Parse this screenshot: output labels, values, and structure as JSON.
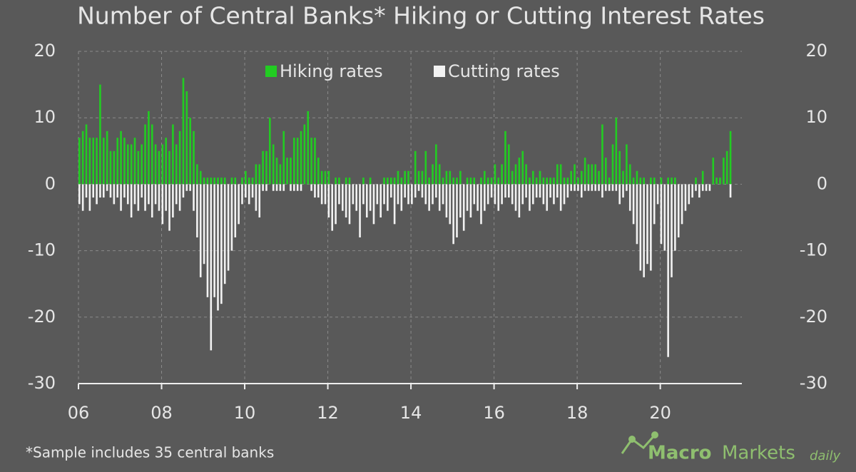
{
  "chart_data": {
    "type": "bar",
    "title": "Number of Central Banks* Hiking or Cutting Interest Rates",
    "footnote": "*Sample includes 35 central banks",
    "brand": [
      "Macro",
      "Markets",
      "daily"
    ],
    "categories": [
      "06",
      null,
      null,
      null,
      null,
      null,
      null,
      null,
      null,
      null,
      null,
      null,
      null,
      null,
      null,
      null,
      null,
      null,
      null,
      null,
      null,
      null,
      null,
      null,
      "08",
      null,
      null,
      null,
      null,
      null,
      null,
      null,
      null,
      null,
      null,
      null,
      null,
      null,
      null,
      null,
      null,
      null,
      null,
      null,
      null,
      null,
      null,
      null,
      "10",
      null,
      null,
      null,
      null,
      null,
      null,
      null,
      null,
      null,
      null,
      null,
      null,
      null,
      null,
      null,
      null,
      null,
      null,
      null,
      null,
      null,
      null,
      null,
      "12",
      null,
      null,
      null,
      null,
      null,
      null,
      null,
      null,
      null,
      null,
      null,
      null,
      null,
      null,
      null,
      null,
      null,
      null,
      null,
      null,
      null,
      null,
      null,
      "14",
      null,
      null,
      null,
      null,
      null,
      null,
      null,
      null,
      null,
      null,
      null,
      null,
      null,
      null,
      null,
      null,
      null,
      null,
      null,
      null,
      null,
      null,
      null,
      "16",
      null,
      null,
      null,
      null,
      null,
      null,
      null,
      null,
      null,
      null,
      null,
      null,
      null,
      null,
      null,
      null,
      null,
      null,
      null,
      null,
      null,
      null,
      null,
      "18",
      null,
      null,
      null,
      null,
      null,
      null,
      null,
      null,
      null,
      null,
      null,
      null,
      null,
      null,
      null,
      null,
      null,
      null,
      null,
      null,
      null,
      null,
      null,
      "20",
      null,
      null,
      null,
      null,
      null,
      null,
      null,
      null,
      null,
      null,
      null,
      null,
      null,
      null,
      null,
      null,
      null,
      null,
      null,
      null
    ],
    "series": [
      {
        "name": "Hiking rates",
        "color": "#22cc22",
        "values": [
          7,
          8,
          9,
          7,
          7,
          7,
          15,
          7,
          8,
          5,
          5,
          7,
          8,
          7,
          6,
          6,
          7,
          5,
          6,
          9,
          11,
          9,
          6,
          5,
          6,
          7,
          5,
          9,
          6,
          8,
          16,
          14,
          10,
          8,
          3,
          2,
          1,
          1,
          1,
          1,
          1,
          1,
          1,
          0,
          1,
          1,
          0,
          1,
          2,
          1,
          1,
          3,
          3,
          5,
          5,
          10,
          6,
          4,
          3,
          8,
          4,
          4,
          7,
          7,
          8,
          9,
          11,
          7,
          7,
          4,
          2,
          2,
          2,
          0,
          1,
          1,
          0,
          1,
          1,
          0,
          0,
          0,
          1,
          0,
          1,
          0,
          0,
          0,
          1,
          1,
          1,
          1,
          2,
          1,
          2,
          2,
          0,
          5,
          2,
          2,
          5,
          1,
          3,
          6,
          3,
          1,
          2,
          2,
          1,
          1,
          2,
          0,
          1,
          1,
          1,
          0,
          1,
          2,
          1,
          1,
          3,
          1,
          3,
          8,
          6,
          2,
          3,
          4,
          5,
          3,
          1,
          2,
          1,
          2,
          1,
          1,
          1,
          1,
          3,
          3,
          1,
          1,
          2,
          3,
          1,
          2,
          4,
          3,
          3,
          3,
          2,
          9,
          4,
          1,
          6,
          10,
          5,
          2,
          6,
          3,
          1,
          2,
          1,
          1,
          0,
          1,
          1,
          0,
          1,
          0,
          1,
          1,
          1,
          0,
          0,
          0,
          0,
          0,
          1,
          0,
          2,
          0,
          0,
          4,
          1,
          1,
          4,
          5,
          8
        ]
      },
      {
        "name": "Cutting rates",
        "color": "#f2f2f2",
        "values": [
          -3,
          -4,
          -2,
          -4,
          -2,
          -3,
          -2,
          -2,
          -1,
          -2,
          -3,
          -2,
          -4,
          -2,
          -3,
          -5,
          -3,
          -4,
          -2,
          -4,
          -3,
          -5,
          -3,
          -4,
          -6,
          -4,
          -7,
          -5,
          -3,
          -4,
          -2,
          -1,
          -1,
          -4,
          -8,
          -14,
          -12,
          -17,
          -25,
          -17,
          -19,
          -18,
          -15,
          -13,
          -10,
          -8,
          -6,
          -3,
          -2,
          -3,
          -2,
          -4,
          -5,
          -1,
          -1,
          0,
          -1,
          -1,
          -1,
          -1,
          0,
          -1,
          -1,
          -1,
          -1,
          0,
          0,
          -1,
          -2,
          -2,
          -3,
          -3,
          -5,
          -7,
          -6,
          -3,
          -4,
          -5,
          -6,
          -3,
          -4,
          -8,
          -3,
          -5,
          -4,
          -6,
          -3,
          -5,
          -3,
          -4,
          -2,
          -6,
          -3,
          -4,
          -2,
          -3,
          -3,
          -2,
          -1,
          -2,
          -3,
          -4,
          -3,
          -2,
          -4,
          -3,
          -5,
          -6,
          -9,
          -8,
          -5,
          -7,
          -4,
          -5,
          -3,
          -4,
          -6,
          -4,
          -3,
          -2,
          -3,
          -4,
          -3,
          -2,
          -2,
          -3,
          -4,
          -5,
          -3,
          -2,
          -4,
          -3,
          -2,
          -2,
          -3,
          -4,
          -2,
          -3,
          -2,
          -4,
          -3,
          -2,
          -1,
          -1,
          -1,
          -2,
          -1,
          -1,
          -1,
          -1,
          -1,
          -2,
          -1,
          -1,
          -1,
          -1,
          -3,
          -2,
          -1,
          -4,
          -6,
          -9,
          -13,
          -14,
          -12,
          -13,
          -6,
          -3,
          -9,
          -10,
          -26,
          -14,
          -10,
          -8,
          -6,
          -4,
          -3,
          -2,
          -1,
          -2,
          -1,
          -1,
          -1,
          0,
          0,
          0,
          0,
          0,
          -2
        ]
      }
    ],
    "ylim": [
      -30,
      20
    ],
    "yticks": [
      -30,
      -20,
      -10,
      0,
      10,
      20
    ],
    "y2lim": [
      -30,
      20
    ],
    "y2ticks": [
      -30,
      -20,
      -10,
      0,
      10,
      20
    ],
    "grid": true,
    "legend": "top"
  }
}
